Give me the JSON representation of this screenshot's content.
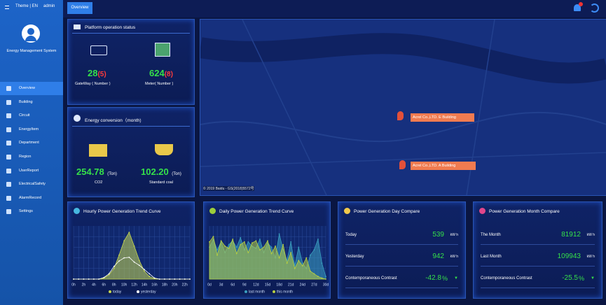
{
  "topbar": {
    "theme": "Theme | EN",
    "user": "admin",
    "tab": "Overview"
  },
  "sidebar": {
    "system_name": "Energy Management System",
    "menu": [
      "Overview",
      "Building",
      "Circuit",
      "EnergyItem",
      "Department",
      "Region",
      "UserReport",
      "ElectricalSafety",
      "AlarmRecord",
      "Settings"
    ]
  },
  "platform_status": {
    "title": "Platform operation status",
    "gateway": {
      "count": 28,
      "alarm": "(5)",
      "label": "GateWay ( Number )"
    },
    "meter": {
      "count": 624,
      "alarm": "(8)",
      "label": "Meter( Number )"
    }
  },
  "energy_conversion": {
    "title": "Energy conversion（month)",
    "co2": {
      "value": "254.78",
      "unit": "(Ton)",
      "label": "CO2"
    },
    "coal": {
      "value": "102.20",
      "unit": "(Ton)",
      "label": "Standard coal"
    }
  },
  "map": {
    "markers": [
      "Acrel Co.,LTD. E Building",
      "Acrel Co.,LTD. A Building"
    ],
    "copyright": "© 2019 Baidu - GS(2018)5572号"
  },
  "hourly": {
    "title": "Hourly Power Generation Trend Curve",
    "chart": {
      "type": "area",
      "categories": [
        "0h",
        null,
        "2h",
        null,
        "4h",
        null,
        "6h",
        null,
        "8h",
        null,
        "10h",
        null,
        "12h",
        null,
        "14h",
        null,
        "16h",
        null,
        "18h",
        null,
        "20h",
        null,
        "22h",
        null
      ],
      "ylim": [
        0,
        100
      ],
      "grid": true,
      "series": [
        {
          "name": "today",
          "color": "#c8d850",
          "values": [
            0,
            0,
            0,
            0,
            0,
            0,
            2,
            8,
            20,
            45,
            72,
            88,
            62,
            35,
            15,
            5,
            1,
            0,
            0,
            0,
            0,
            0,
            0,
            0
          ]
        },
        {
          "name": "yesterday",
          "color": "#ffffff",
          "values": [
            0,
            0,
            0,
            0,
            0,
            0,
            3,
            10,
            24,
            34,
            40,
            41,
            32,
            26,
            18,
            10,
            2,
            0,
            0,
            0,
            0,
            0,
            0,
            0
          ]
        }
      ]
    }
  },
  "daily": {
    "title": "Daily Power Generation Trend Curve",
    "chart": {
      "type": "area",
      "categories": [
        "0d",
        null,
        null,
        "3d",
        null,
        null,
        "6d",
        null,
        null,
        "9d",
        null,
        null,
        "12d",
        null,
        null,
        "15d",
        null,
        null,
        "18d",
        null,
        null,
        "21d",
        null,
        null,
        "24d",
        null,
        null,
        "27d",
        null,
        null,
        "30d"
      ],
      "ylim": [
        0,
        100
      ],
      "grid": true,
      "series": [
        {
          "name": "last month",
          "color": "#3a9fbf",
          "values": [
            60,
            75,
            55,
            70,
            50,
            65,
            72,
            60,
            78,
            55,
            70,
            62,
            58,
            75,
            50,
            68,
            60,
            40,
            85,
            55,
            35,
            70,
            25,
            60,
            30,
            20,
            45,
            55,
            75,
            30,
            5
          ]
        },
        {
          "name": "this month",
          "color": "#b8d040",
          "values": [
            70,
            80,
            45,
            72,
            62,
            58,
            75,
            48,
            65,
            70,
            50,
            68,
            72,
            55,
            60,
            72,
            48,
            62,
            40,
            65,
            30,
            50,
            20,
            35,
            25,
            40,
            15,
            10,
            5,
            2,
            0
          ]
        }
      ]
    }
  },
  "day_compare": {
    "title": "Power Generation Day Compare",
    "rows": [
      {
        "label": "Today",
        "value": 539,
        "unit": "kW h"
      },
      {
        "label": "Yesterday",
        "value": 942,
        "unit": "kW h"
      },
      {
        "label": "Contemporaneous Contrast",
        "value": -42.8,
        "unit": "%"
      }
    ]
  },
  "month_compare": {
    "title": "Power Generation Month Compare",
    "rows": [
      {
        "label": "The Month",
        "value": 81912,
        "unit": "kW h"
      },
      {
        "label": "Last Month",
        "value": 109943,
        "unit": "kW h"
      },
      {
        "label": "Contemporaneous Contrast",
        "value": -25.5,
        "unit": "%"
      }
    ]
  }
}
